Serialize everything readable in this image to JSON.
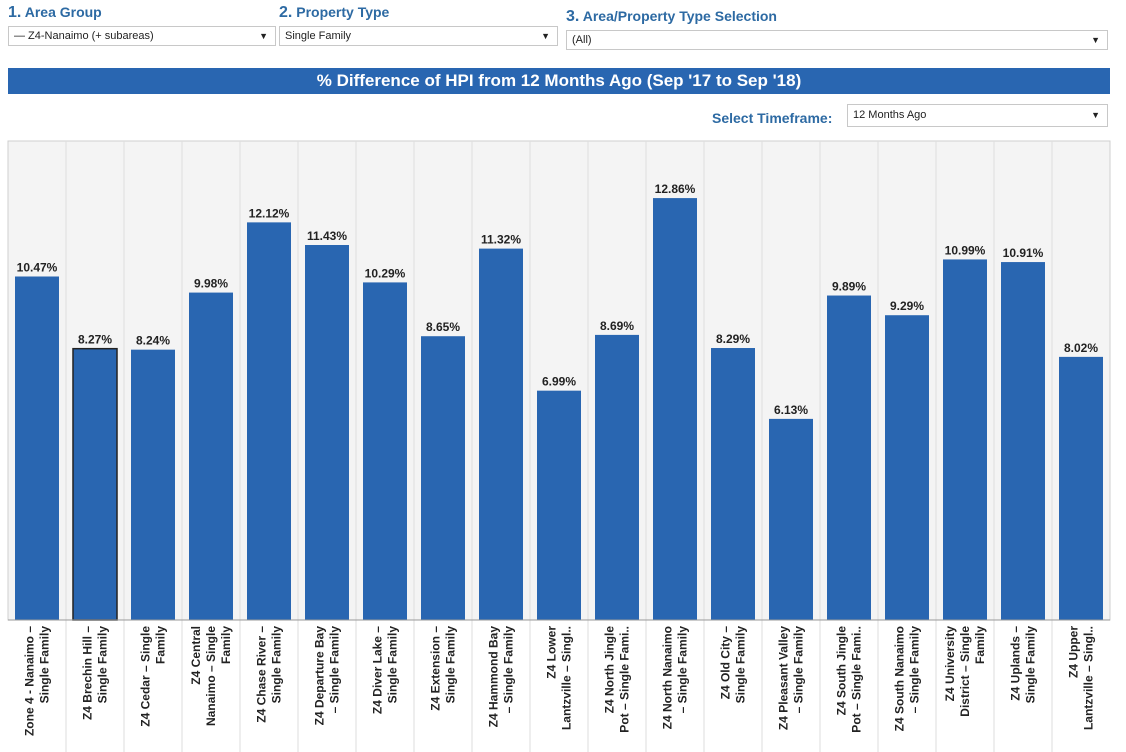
{
  "filters": {
    "area_group": {
      "number": "1.",
      "label": "Area Group",
      "value": "— Z4-Nanaimo (+ subareas)"
    },
    "property_type": {
      "number": "2.",
      "label": "Property Type",
      "value": "Single Family"
    },
    "selection": {
      "number": "3.",
      "label": "Area/Property Type Selection",
      "value": "(All)"
    }
  },
  "banner": {
    "title": "% Difference of HPI from 12 Months Ago (Sep '17 to Sep '18)"
  },
  "timeframe": {
    "label": "Select Timeframe:",
    "value": "12 Months Ago"
  },
  "colors": {
    "bar": "#2966b1",
    "accent": "#2d6aa3",
    "plot_bg": "#f4f4f4",
    "highlight_stroke": "#222222"
  },
  "chart_data": {
    "type": "bar",
    "title": "% Difference of HPI from 12 Months Ago (Sep '17 to Sep '18)",
    "categories": [
      [
        "Zone 4 - Nanaimo –",
        "Single Family"
      ],
      [
        "Z4 Brechin Hill –",
        "Single Family"
      ],
      [
        "Z4 Cedar – Single",
        "Family"
      ],
      [
        "Z4 Central",
        "Nanaimo – Single",
        "Family"
      ],
      [
        "Z4 Chase River –",
        "Single Family"
      ],
      [
        "Z4 Departure Bay",
        "– Single Family"
      ],
      [
        "Z4 Diver Lake –",
        "Single Family"
      ],
      [
        "Z4 Extension –",
        "Single Family"
      ],
      [
        "Z4 Hammond Bay",
        "– Single Family"
      ],
      [
        "Z4 Lower",
        "Lantzville – Singl.."
      ],
      [
        "Z4 North Jingle",
        "Pot – Single Fami.."
      ],
      [
        "Z4 North Nanaimo",
        "– Single Family"
      ],
      [
        "Z4 Old City –",
        "Single Family"
      ],
      [
        "Z4 Pleasant Valley",
        "– Single Family"
      ],
      [
        "Z4 South Jingle",
        "Pot – Single Fami.."
      ],
      [
        "Z4 South Nanaimo",
        "– Single Family"
      ],
      [
        "Z4 University",
        "District – Single",
        "Family"
      ],
      [
        "Z4 Uplands –",
        "Single Family"
      ],
      [
        "Z4 Upper",
        "Lantzville – Singl.."
      ]
    ],
    "values": [
      10.47,
      8.27,
      8.24,
      9.98,
      12.12,
      11.43,
      10.29,
      8.65,
      11.32,
      6.99,
      8.69,
      12.86,
      8.29,
      6.13,
      9.89,
      9.29,
      10.99,
      10.91,
      8.02
    ],
    "value_labels": [
      "10.47%",
      "8.27%",
      "8.24%",
      "9.98%",
      "12.12%",
      "11.43%",
      "10.29%",
      "8.65%",
      "11.32%",
      "6.99%",
      "8.69%",
      "12.86%",
      "8.29%",
      "6.13%",
      "9.89%",
      "9.29%",
      "10.99%",
      "10.91%",
      "8.02%"
    ],
    "highlighted_index": 1,
    "ylim": [
      0,
      14.6
    ],
    "grid": false,
    "xlabel": "",
    "ylabel": ""
  }
}
